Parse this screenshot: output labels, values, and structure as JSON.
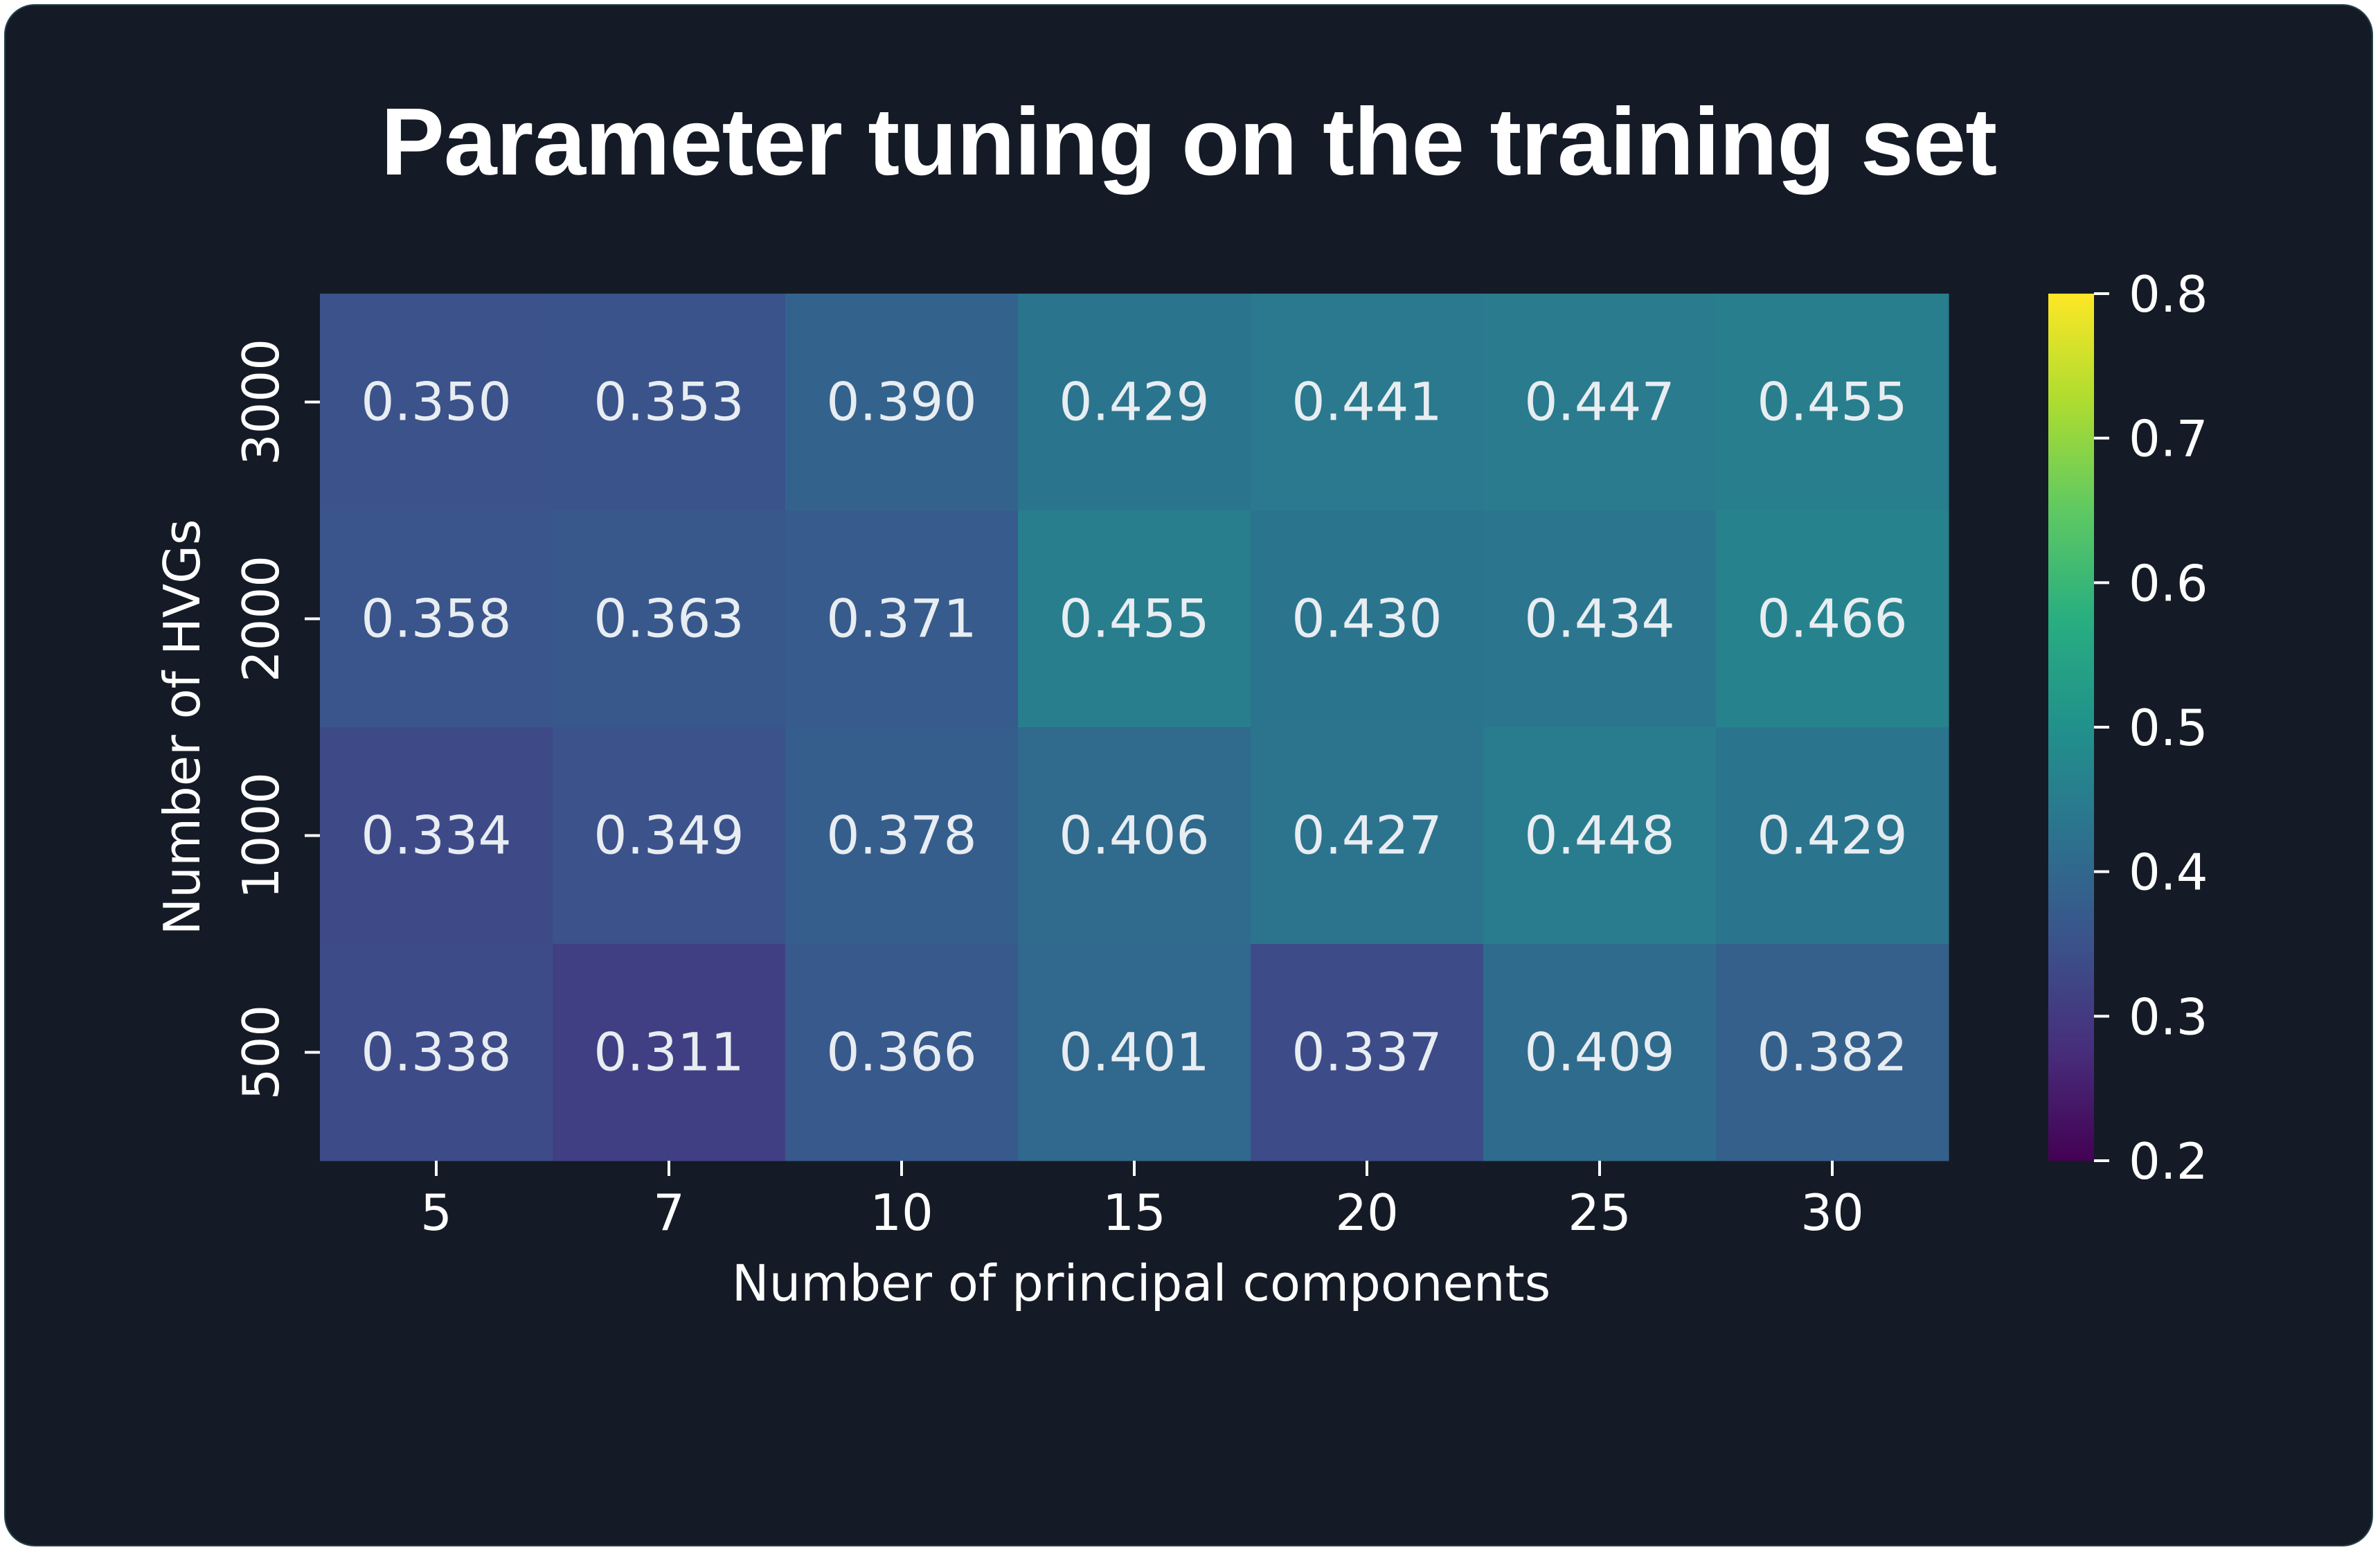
{
  "chart_data": {
    "type": "heatmap",
    "title": "Parameter tuning on the training set",
    "xlabel": "Number of principal components",
    "ylabel": "Number of HVGs",
    "x_categories": [
      "5",
      "7",
      "10",
      "15",
      "20",
      "25",
      "30"
    ],
    "y_categories": [
      "3000",
      "2000",
      "1000",
      "500"
    ],
    "values": [
      [
        0.35,
        0.353,
        0.39,
        0.429,
        0.441,
        0.447,
        0.455
      ],
      [
        0.358,
        0.363,
        0.371,
        0.455,
        0.43,
        0.434,
        0.466
      ],
      [
        0.334,
        0.349,
        0.378,
        0.406,
        0.427,
        0.448,
        0.429
      ],
      [
        0.338,
        0.311,
        0.366,
        0.401,
        0.337,
        0.409,
        0.382
      ]
    ],
    "cell_labels": [
      [
        "0.350",
        "0.353",
        "0.390",
        "0.429",
        "0.441",
        "0.447",
        "0.455"
      ],
      [
        "0.358",
        "0.363",
        "0.371",
        "0.455",
        "0.430",
        "0.434",
        "0.466"
      ],
      [
        "0.334",
        "0.349",
        "0.378",
        "0.406",
        "0.427",
        "0.448",
        "0.429"
      ],
      [
        "0.338",
        "0.311",
        "0.366",
        "0.401",
        "0.337",
        "0.409",
        "0.382"
      ]
    ],
    "colorbar": {
      "colormap": "viridis",
      "vmin": 0.2,
      "vmax": 0.8,
      "ticks": [
        "0.2",
        "0.3",
        "0.4",
        "0.5",
        "0.6",
        "0.7",
        "0.8"
      ]
    }
  },
  "colors": {
    "background": "#151b26",
    "text": "#ffffff",
    "cell_text": "#e8edf2"
  }
}
